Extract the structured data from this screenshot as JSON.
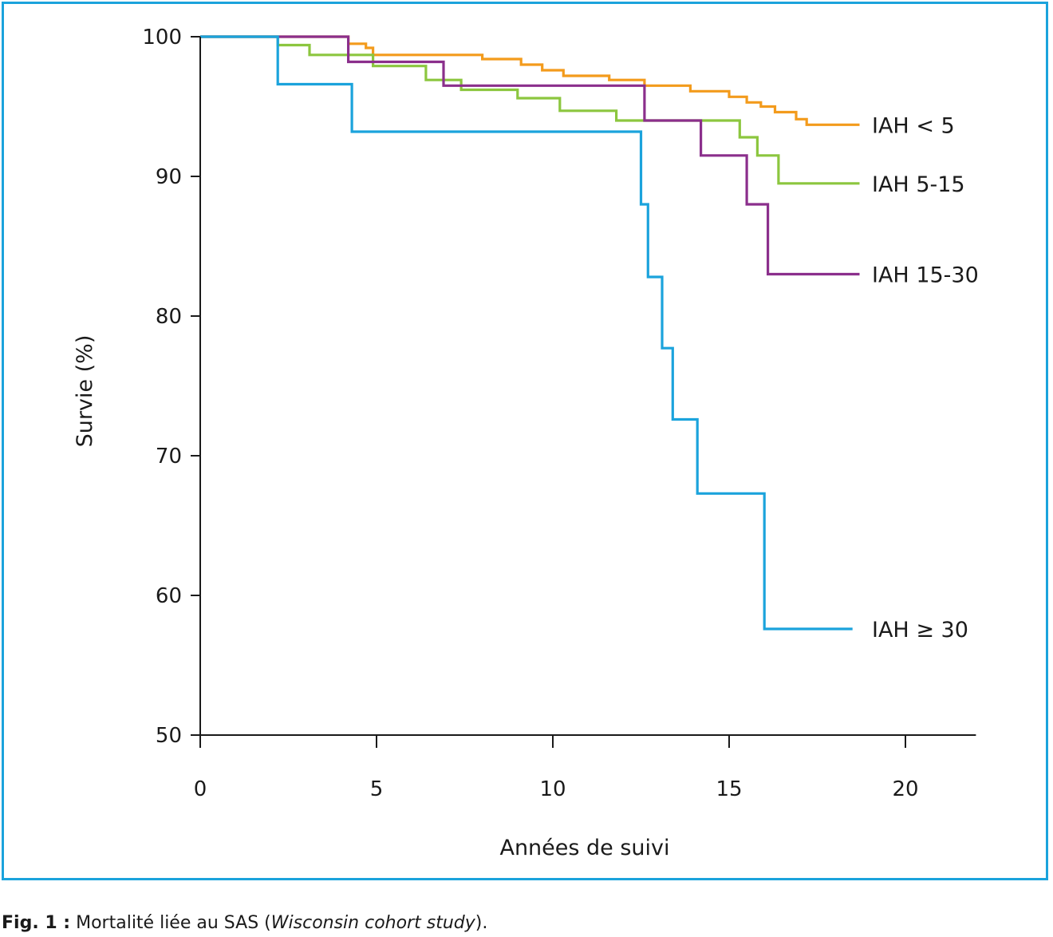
{
  "caption": {
    "label": "Fig. 1 :",
    "text": "Mortalité liée au SAS (",
    "italic": "Wisconsin cohort study",
    "end": ")."
  },
  "chart_data": {
    "type": "line",
    "step": true,
    "xlabel": "Années de suivi",
    "ylabel": "Survie (%)",
    "xlim": [
      0,
      22
    ],
    "ylim": [
      50,
      100
    ],
    "xticks": [
      0,
      5,
      10,
      15,
      20
    ],
    "yticks": [
      50,
      60,
      70,
      80,
      90,
      100
    ],
    "grid": false,
    "legend": "labels at line ends (right)",
    "series": [
      {
        "name": "IAH < 5",
        "color": "#f39b1c",
        "points": [
          [
            0,
            100
          ],
          [
            4.2,
            100
          ],
          [
            4.2,
            99.5
          ],
          [
            4.7,
            99.5
          ],
          [
            4.7,
            99.2
          ],
          [
            4.9,
            99.2
          ],
          [
            4.9,
            98.7
          ],
          [
            8,
            98.7
          ],
          [
            8,
            98.4
          ],
          [
            9.1,
            98.4
          ],
          [
            9.1,
            98
          ],
          [
            9.7,
            98
          ],
          [
            9.7,
            97.6
          ],
          [
            10.3,
            97.6
          ],
          [
            10.3,
            97.2
          ],
          [
            11.6,
            97.2
          ],
          [
            11.6,
            96.9
          ],
          [
            12.6,
            96.9
          ],
          [
            12.6,
            96.5
          ],
          [
            13.9,
            96.5
          ],
          [
            13.9,
            96.1
          ],
          [
            15,
            96.1
          ],
          [
            15,
            95.7
          ],
          [
            15.5,
            95.7
          ],
          [
            15.5,
            95.3
          ],
          [
            15.9,
            95.3
          ],
          [
            15.9,
            95
          ],
          [
            16.3,
            95
          ],
          [
            16.3,
            94.6
          ],
          [
            16.9,
            94.6
          ],
          [
            16.9,
            94.1
          ],
          [
            17.2,
            94.1
          ],
          [
            17.2,
            93.7
          ],
          [
            18.7,
            93.7
          ]
        ]
      },
      {
        "name": "IAH 5-15",
        "color": "#8cc63f",
        "points": [
          [
            0,
            100
          ],
          [
            2.2,
            100
          ],
          [
            2.2,
            99.4
          ],
          [
            3.1,
            99.4
          ],
          [
            3.1,
            98.7
          ],
          [
            4.9,
            98.7
          ],
          [
            4.9,
            97.9
          ],
          [
            6.4,
            97.9
          ],
          [
            6.4,
            96.9
          ],
          [
            7.4,
            96.9
          ],
          [
            7.4,
            96.2
          ],
          [
            9,
            96.2
          ],
          [
            9,
            95.6
          ],
          [
            10.2,
            95.6
          ],
          [
            10.2,
            94.7
          ],
          [
            11.8,
            94.7
          ],
          [
            11.8,
            94
          ],
          [
            15.3,
            94
          ],
          [
            15.3,
            92.8
          ],
          [
            15.8,
            92.8
          ],
          [
            15.8,
            91.5
          ],
          [
            16.4,
            91.5
          ],
          [
            16.4,
            89.5
          ],
          [
            18.7,
            89.5
          ]
        ]
      },
      {
        "name": "IAH 15-30",
        "color": "#8b2f8c",
        "points": [
          [
            0,
            100
          ],
          [
            4.2,
            100
          ],
          [
            4.2,
            98.2
          ],
          [
            6.9,
            98.2
          ],
          [
            6.9,
            96.5
          ],
          [
            12.6,
            96.5
          ],
          [
            12.6,
            94
          ],
          [
            14.2,
            94
          ],
          [
            14.2,
            91.5
          ],
          [
            15.5,
            91.5
          ],
          [
            15.5,
            88
          ],
          [
            16.1,
            88
          ],
          [
            16.1,
            83
          ],
          [
            18.7,
            83
          ]
        ]
      },
      {
        "name": "IAH ≥ 30",
        "color": "#1ba3dc",
        "points": [
          [
            0,
            100
          ],
          [
            2.2,
            100
          ],
          [
            2.2,
            96.6
          ],
          [
            4.3,
            96.6
          ],
          [
            4.3,
            93.2
          ],
          [
            12.5,
            93.2
          ],
          [
            12.5,
            88
          ],
          [
            12.7,
            88
          ],
          [
            12.7,
            82.8
          ],
          [
            13.1,
            82.8
          ],
          [
            13.1,
            77.7
          ],
          [
            13.4,
            77.7
          ],
          [
            13.4,
            72.6
          ],
          [
            14.1,
            72.6
          ],
          [
            14.1,
            67.3
          ],
          [
            16,
            67.3
          ],
          [
            16,
            57.6
          ],
          [
            18.5,
            57.6
          ]
        ]
      }
    ]
  }
}
